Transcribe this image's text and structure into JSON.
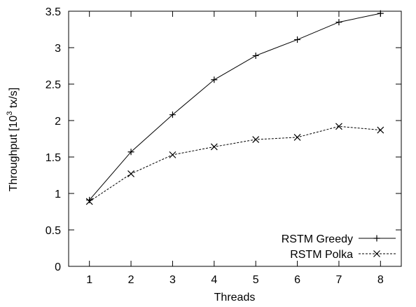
{
  "chart_data": {
    "type": "line",
    "xlabel": "Threads",
    "ylabel": {
      "prefix": "Throughput [10",
      "sup": "3",
      "suffix": " tx/s]"
    },
    "x": [
      1,
      2,
      3,
      4,
      5,
      6,
      7,
      8
    ],
    "xlim": [
      0.5,
      8.5
    ],
    "ylim": [
      0,
      3.5
    ],
    "xticks": [
      "1",
      "2",
      "3",
      "4",
      "5",
      "6",
      "7",
      "8"
    ],
    "yticks": [
      "0",
      "0.5",
      "1",
      "1.5",
      "2",
      "2.5",
      "3",
      "3.5"
    ],
    "grid": false,
    "legend_position": "bottom-right",
    "series": [
      {
        "name": "RSTM Greedy",
        "marker": "plus",
        "line": "solid",
        "values": [
          0.91,
          1.57,
          2.08,
          2.56,
          2.89,
          3.11,
          3.35,
          3.47
        ]
      },
      {
        "name": "RSTM Polka",
        "marker": "cross",
        "line": "dashed",
        "values": [
          0.89,
          1.27,
          1.53,
          1.64,
          1.74,
          1.77,
          1.92,
          1.87
        ]
      }
    ]
  }
}
